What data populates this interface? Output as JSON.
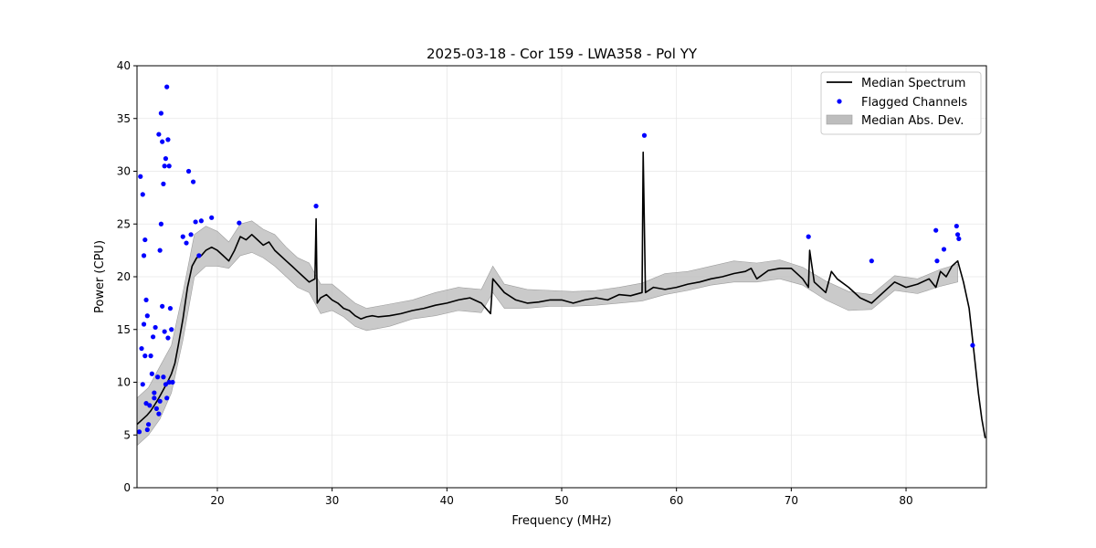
{
  "chart_data": {
    "type": "line",
    "title": "2025-03-18 - Cor 159 - LWA358 - Pol YY",
    "xlabel": "Frequency (MHz)",
    "ylabel": "Power (CPU)",
    "xlim": [
      13.0,
      87.0
    ],
    "ylim": [
      0,
      40
    ],
    "xticks": [
      20,
      30,
      40,
      50,
      60,
      70,
      80
    ],
    "yticks": [
      0,
      5,
      10,
      15,
      20,
      25,
      30,
      35,
      40
    ],
    "grid": true,
    "legend_position": "upper-right",
    "colors": {
      "median": "#000000",
      "flagged": "#0000ff",
      "band": "#bdbdbd"
    },
    "legend": [
      {
        "label": "Median Spectrum",
        "kind": "line"
      },
      {
        "label": "Flagged Channels",
        "kind": "marker"
      },
      {
        "label": "Median Abs. Dev.",
        "kind": "patch"
      }
    ],
    "series": [
      {
        "name": "Median Spectrum",
        "x": [
          13.0,
          13.3,
          13.6,
          13.9,
          14.2,
          14.5,
          14.8,
          15.1,
          15.4,
          15.7,
          16.0,
          16.3,
          16.6,
          17.0,
          17.4,
          17.8,
          18.2,
          18.6,
          19.0,
          19.5,
          20.0,
          20.5,
          21.0,
          21.5,
          22.0,
          22.5,
          23.0,
          23.5,
          24.0,
          24.5,
          25.0,
          25.5,
          26.0,
          26.5,
          27.0,
          27.5,
          28.0,
          28.5,
          28.6,
          28.7,
          29.0,
          29.5,
          30.0,
          30.5,
          31.0,
          31.5,
          32.0,
          32.5,
          33.0,
          33.5,
          34.0,
          35.0,
          36.0,
          37.0,
          38.0,
          39.0,
          40.0,
          41.0,
          42.0,
          43.0,
          43.8,
          44.0,
          45.0,
          46.0,
          47.0,
          48.0,
          49.0,
          50.0,
          51.0,
          52.0,
          53.0,
          54.0,
          55.0,
          56.0,
          57.0,
          57.1,
          57.3,
          58.0,
          59.0,
          60.0,
          61.0,
          62.0,
          63.0,
          64.0,
          65.0,
          66.0,
          66.5,
          67.0,
          68.0,
          69.0,
          70.0,
          71.0,
          71.5,
          71.6,
          72.0,
          73.0,
          73.5,
          74.0,
          75.0,
          76.0,
          77.0,
          78.0,
          79.0,
          80.0,
          81.0,
          82.0,
          82.6,
          83.0,
          83.5,
          84.0,
          84.5,
          85.0,
          85.5,
          85.9,
          86.3,
          86.6,
          86.9
        ],
        "y": [
          6.0,
          6.3,
          6.6,
          6.9,
          7.3,
          7.8,
          8.3,
          8.9,
          9.5,
          10.1,
          10.8,
          11.8,
          13.5,
          16.0,
          19.0,
          21.0,
          21.8,
          22.0,
          22.5,
          22.8,
          22.5,
          22.0,
          21.5,
          22.5,
          23.8,
          23.5,
          24.0,
          23.5,
          23.0,
          23.3,
          22.5,
          22.0,
          21.5,
          21.0,
          20.5,
          20.0,
          19.5,
          19.8,
          25.5,
          17.5,
          18.0,
          18.3,
          17.8,
          17.5,
          17.0,
          16.8,
          16.3,
          16.0,
          16.2,
          16.3,
          16.2,
          16.3,
          16.5,
          16.8,
          17.0,
          17.3,
          17.5,
          17.8,
          18.0,
          17.5,
          16.5,
          19.8,
          18.5,
          17.8,
          17.5,
          17.6,
          17.8,
          17.8,
          17.5,
          17.8,
          18.0,
          17.8,
          18.3,
          18.2,
          18.5,
          31.8,
          18.5,
          19.0,
          18.8,
          19.0,
          19.3,
          19.5,
          19.8,
          20.0,
          20.3,
          20.5,
          20.8,
          19.8,
          20.6,
          20.8,
          20.8,
          19.8,
          19.0,
          22.5,
          19.5,
          18.5,
          20.5,
          19.8,
          19.0,
          18.0,
          17.5,
          18.5,
          19.5,
          19.0,
          19.3,
          19.8,
          19.0,
          20.5,
          20.0,
          21.0,
          21.5,
          19.5,
          17.0,
          13.0,
          9.0,
          6.5,
          4.7
        ]
      }
    ],
    "band": {
      "name": "Median Abs. Dev.",
      "x": [
        13.0,
        14.0,
        15.0,
        16.0,
        17.0,
        18.0,
        19.0,
        20.0,
        21.0,
        22.0,
        23.0,
        24.0,
        25.0,
        26.0,
        27.0,
        28.0,
        29.0,
        30.0,
        31.0,
        32.0,
        33.0,
        35.0,
        37.0,
        39.0,
        41.0,
        43.0,
        44.0,
        45.0,
        47.0,
        49.0,
        51.0,
        53.0,
        55.0,
        57.0,
        59.0,
        61.0,
        63.0,
        65.0,
        67.0,
        69.0,
        71.0,
        73.0,
        75.0,
        77.0,
        79.0,
        81.0,
        83.0,
        84.5
      ],
      "lower": [
        4.0,
        5.0,
        6.5,
        9.0,
        14.0,
        20.0,
        21.0,
        21.0,
        20.8,
        22.0,
        22.3,
        21.8,
        21.0,
        20.0,
        19.0,
        18.5,
        16.5,
        16.8,
        16.2,
        15.3,
        14.9,
        15.3,
        16.0,
        16.3,
        16.8,
        16.6,
        18.5,
        17.0,
        17.0,
        17.2,
        17.2,
        17.3,
        17.5,
        17.7,
        18.3,
        18.7,
        19.2,
        19.5,
        19.5,
        19.8,
        19.2,
        17.8,
        16.8,
        16.9,
        18.7,
        18.4,
        19.1,
        19.5
      ],
      "upper": [
        8.5,
        9.5,
        11.5,
        13.5,
        18.5,
        24.0,
        24.8,
        24.3,
        23.3,
        25.0,
        25.3,
        24.5,
        24.0,
        22.8,
        21.8,
        21.3,
        19.3,
        19.3,
        18.4,
        17.5,
        17.0,
        17.4,
        17.8,
        18.5,
        19.0,
        18.8,
        21.0,
        19.3,
        18.8,
        18.7,
        18.6,
        18.7,
        19.0,
        19.4,
        20.3,
        20.5,
        21.0,
        21.5,
        21.3,
        21.6,
        20.9,
        19.6,
        18.6,
        18.3,
        20.1,
        19.8,
        20.7,
        21.2
      ]
    },
    "flagged_channels": {
      "name": "Flagged Channels",
      "x": [
        13.2,
        13.3,
        13.4,
        13.5,
        13.5,
        13.6,
        13.6,
        13.7,
        13.7,
        13.8,
        13.8,
        13.9,
        13.9,
        14.0,
        14.1,
        14.2,
        14.3,
        14.4,
        14.5,
        14.5,
        14.6,
        14.7,
        14.8,
        14.9,
        14.9,
        15.0,
        15.0,
        15.1,
        15.1,
        15.2,
        15.2,
        15.3,
        15.3,
        15.4,
        15.4,
        15.5,
        15.5,
        15.6,
        15.6,
        15.7,
        15.7,
        15.8,
        15.8,
        15.9,
        16.0,
        16.1,
        17.0,
        17.3,
        17.5,
        17.7,
        17.9,
        18.1,
        18.4,
        18.6,
        19.5,
        21.9,
        28.6,
        57.2,
        71.5,
        77.0,
        82.6,
        82.7,
        83.3,
        84.4,
        84.5,
        84.6,
        85.8
      ],
      "y": [
        5.3,
        29.5,
        13.2,
        27.8,
        9.8,
        22.0,
        15.5,
        23.5,
        12.5,
        17.8,
        8.0,
        16.3,
        5.5,
        6.0,
        7.8,
        12.5,
        10.8,
        14.3,
        9.0,
        8.5,
        15.2,
        7.5,
        10.5,
        7.0,
        33.5,
        8.2,
        22.5,
        35.5,
        25.0,
        32.8,
        17.2,
        28.8,
        10.5,
        30.5,
        14.8,
        31.2,
        9.8,
        38.0,
        8.5,
        33.0,
        14.2,
        30.5,
        10.0,
        17.0,
        15.0,
        10.0,
        23.8,
        23.2,
        30.0,
        24.0,
        29.0,
        25.2,
        22.0,
        25.3,
        25.6,
        25.1,
        26.7,
        33.4,
        23.8,
        21.5,
        24.4,
        21.5,
        22.6,
        24.8,
        24.0,
        23.6,
        13.5
      ]
    }
  }
}
